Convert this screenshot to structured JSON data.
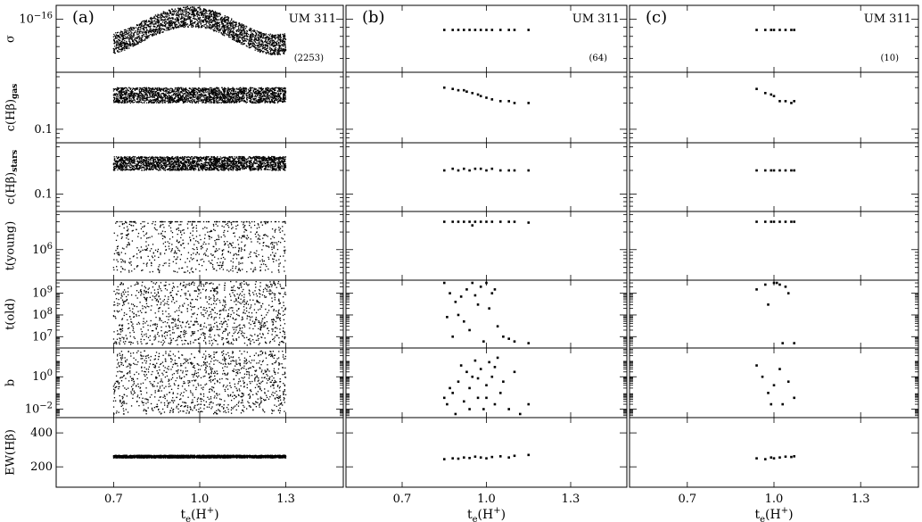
{
  "chart_data": {
    "type": "scatter",
    "object_label": "UM 311",
    "xlabel": "t_e(H+)",
    "x_ticks": [
      "0.7",
      "1.0",
      "1.3"
    ],
    "xlim": [
      0.5,
      1.5
    ],
    "columns": [
      {
        "tag": "(a)",
        "count_label": "(2253)",
        "n_points": 2253,
        "xrange": [
          0.7,
          1.3
        ]
      },
      {
        "tag": "(b)",
        "count_label": "(64)",
        "n_points": 64,
        "xrange": [
          0.84,
          1.15
        ]
      },
      {
        "tag": "(c)",
        "count_label": "(10)",
        "n_points": 10,
        "xrange": [
          0.94,
          1.07
        ]
      }
    ],
    "rows": [
      {
        "ylabel": "σ",
        "tick_labels": [
          "10^-16"
        ],
        "scale": "log",
        "ylim": [
          5e-17,
          1.2e-16
        ],
        "ticks": [
          1e-16
        ],
        "series": "sigma"
      },
      {
        "ylabel": "c(Hβ)gas",
        "tick_labels": [
          "0.1"
        ],
        "scale": "log",
        "ylim": [
          0.07,
          0.45
        ],
        "ticks": [
          0.1
        ],
        "series": "cgas"
      },
      {
        "ylabel": "c(Hβ)stars",
        "tick_labels": [
          "0.1"
        ],
        "scale": "log",
        "ylim": [
          0.06,
          0.45
        ],
        "ticks": [
          0.1
        ],
        "series": "cstars"
      },
      {
        "ylabel": "t(young)",
        "tick_labels": [
          "10^6"
        ],
        "scale": "log",
        "ylim": [
          300000.0,
          4500000.0
        ],
        "ticks": [
          1000000
        ],
        "series": "tyoung"
      },
      {
        "ylabel": "t(old)",
        "tick_labels": [
          "10^9",
          "10^8",
          "10^7"
        ],
        "scale": "log",
        "ylim": [
          3000000.0,
          4000000000.0
        ],
        "ticks": [
          1000000000,
          100000000,
          10000000
        ],
        "series": "told"
      },
      {
        "ylabel": "b",
        "tick_labels": [
          "10^0",
          "10^-2"
        ],
        "scale": "log",
        "ylim": [
          0.003,
          60
        ],
        "ticks": [
          1,
          0.01
        ],
        "series": "b"
      },
      {
        "ylabel": "EW(Hβ)",
        "tick_labels": [
          "400",
          "200"
        ],
        "scale": "linear",
        "ylim": [
          80,
          490
        ],
        "ticks": [
          400,
          200
        ],
        "series": "ew"
      }
    ],
    "data": {
      "sigma": [
        {
          "col": "(b)",
          "x": [
            0.85,
            0.88,
            0.9,
            0.92,
            0.94,
            0.96,
            0.98,
            1.0,
            1.02,
            1.05,
            1.08,
            1.1,
            1.15
          ],
          "y": [
            8.7e-17,
            8.7e-17,
            8.7e-17,
            8.7e-17,
            8.7e-17,
            8.7e-17,
            8.7e-17,
            8.7e-17,
            8.7e-17,
            8.7e-17,
            8.7e-17,
            8.7e-17,
            8.7e-17
          ]
        },
        {
          "col": "(c)",
          "x": [
            0.94,
            0.97,
            0.99,
            1.0,
            1.02,
            1.04,
            1.06,
            1.07
          ],
          "y": [
            8.7e-17,
            8.7e-17,
            8.7e-17,
            8.7e-17,
            8.7e-17,
            8.7e-17,
            8.7e-17,
            8.7e-17
          ]
        }
      ],
      "cgas": [
        {
          "col": "(b)",
          "x": [
            0.85,
            0.88,
            0.9,
            0.92,
            0.93,
            0.95,
            0.97,
            0.98,
            1.0,
            1.02,
            1.05,
            1.08,
            1.1,
            1.15
          ],
          "y": [
            0.3,
            0.29,
            0.28,
            0.28,
            0.27,
            0.26,
            0.25,
            0.24,
            0.23,
            0.22,
            0.21,
            0.21,
            0.2,
            0.2
          ]
        },
        {
          "col": "(c)",
          "x": [
            0.94,
            0.97,
            0.99,
            1.0,
            1.02,
            1.04,
            1.06,
            1.07
          ],
          "y": [
            0.29,
            0.26,
            0.25,
            0.24,
            0.21,
            0.21,
            0.2,
            0.21
          ]
        }
      ],
      "cstars": [
        {
          "col": "(b)",
          "x": [
            0.85,
            0.88,
            0.9,
            0.92,
            0.94,
            0.96,
            0.98,
            1.0,
            1.02,
            1.05,
            1.08,
            1.1,
            1.15
          ],
          "y": [
            0.2,
            0.21,
            0.2,
            0.21,
            0.2,
            0.21,
            0.21,
            0.2,
            0.21,
            0.2,
            0.2,
            0.2,
            0.2
          ]
        },
        {
          "col": "(c)",
          "x": [
            0.94,
            0.97,
            0.99,
            1.0,
            1.02,
            1.04,
            1.06,
            1.07
          ],
          "y": [
            0.2,
            0.2,
            0.2,
            0.2,
            0.2,
            0.2,
            0.2,
            0.2
          ]
        }
      ],
      "tyoung": [
        {
          "col": "(b)",
          "x": [
            0.85,
            0.88,
            0.9,
            0.92,
            0.94,
            0.95,
            0.96,
            0.98,
            1.0,
            1.02,
            1.05,
            1.08,
            1.1,
            1.15
          ],
          "y": [
            3000000,
            3000000,
            3000000,
            3000000,
            3000000,
            2600000,
            3000000,
            3000000,
            3000000,
            3000000,
            3000000,
            3000000,
            3000000,
            2900000
          ]
        },
        {
          "col": "(c)",
          "x": [
            0.94,
            0.97,
            0.99,
            1.0,
            1.02,
            1.04,
            1.06,
            1.07
          ],
          "y": [
            3000000,
            3000000,
            3000000,
            3000000,
            3000000,
            3000000,
            3000000,
            3000000
          ]
        }
      ],
      "told": [
        {
          "col": "(b)",
          "x": [
            0.85,
            0.87,
            0.89,
            0.9,
            0.92,
            0.93,
            0.95,
            0.96,
            0.98,
            1.0,
            1.01,
            1.02,
            1.04,
            1.06,
            1.08,
            1.1,
            1.15,
            0.86,
            0.94,
            0.97,
            0.99,
            1.03,
            0.91,
            0.88
          ],
          "y": [
            3000000000,
            1000000000,
            400000000,
            100000000,
            50000000,
            1500000000,
            3000000000,
            800000000,
            2000000000,
            3000000000,
            200000000,
            1000000000,
            30000000,
            10000000,
            8000000,
            6000000,
            5000000,
            80000000,
            20000000,
            300000000,
            6000000,
            1500000000,
            700000000,
            10000000
          ]
        },
        {
          "col": "(c)",
          "x": [
            0.94,
            0.97,
            0.98,
            1.0,
            1.01,
            1.02,
            1.03,
            1.04,
            1.05,
            1.07
          ],
          "y": [
            1500000000,
            2500000000,
            300000000,
            3000000000,
            3000000000,
            2500000000,
            5000000,
            2000000000,
            1000000000,
            5000000
          ]
        }
      ],
      "b": [
        {
          "col": "(b)",
          "x": [
            0.85,
            0.86,
            0.88,
            0.9,
            0.91,
            0.92,
            0.93,
            0.94,
            0.95,
            0.96,
            0.97,
            0.98,
            0.99,
            1.0,
            1.01,
            1.02,
            1.03,
            1.04,
            1.05,
            1.06,
            1.08,
            1.1,
            1.12,
            1.15,
            0.87,
            0.89,
            0.94,
            0.97,
            1.0,
            1.03
          ],
          "y": [
            0.05,
            0.02,
            0.1,
            0.5,
            5,
            0.03,
            2,
            0.2,
            1,
            10,
            0.05,
            3,
            0.01,
            0.3,
            8,
            1,
            0.02,
            15,
            0.1,
            0.5,
            0.01,
            2,
            0.005,
            0.02,
            0.2,
            0.005,
            0.01,
            0.8,
            0.05,
            4
          ]
        },
        {
          "col": "(c)",
          "x": [
            0.94,
            0.96,
            0.98,
            0.99,
            1.0,
            1.02,
            1.03,
            1.05,
            1.07
          ],
          "y": [
            5,
            1,
            0.1,
            0.02,
            0.3,
            3,
            0.02,
            0.5,
            0.05
          ]
        }
      ],
      "ew": [
        {
          "col": "(b)",
          "x": [
            0.85,
            0.88,
            0.9,
            0.92,
            0.94,
            0.96,
            0.98,
            1.0,
            1.02,
            1.05,
            1.08,
            1.1,
            1.15
          ],
          "y": [
            245,
            250,
            248,
            255,
            252,
            260,
            255,
            250,
            258,
            262,
            255,
            265,
            270
          ]
        },
        {
          "col": "(c)",
          "x": [
            0.94,
            0.97,
            0.99,
            1.0,
            1.02,
            1.04,
            1.06,
            1.07
          ],
          "y": [
            250,
            245,
            255,
            250,
            255,
            260,
            258,
            262
          ]
        }
      ]
    }
  }
}
